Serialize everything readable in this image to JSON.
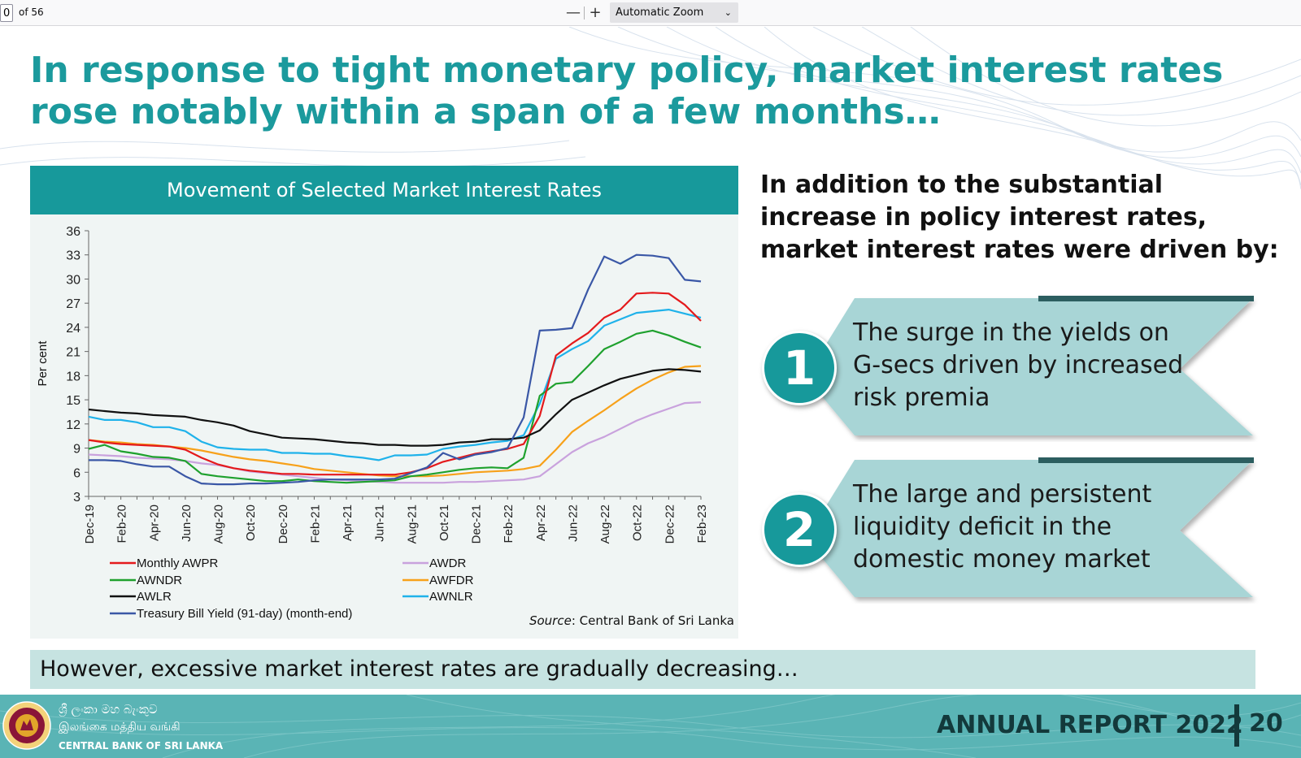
{
  "viewer": {
    "page_current": "0",
    "page_total_label": "of 56",
    "zoom_out": "—",
    "zoom_in": "+",
    "zoom_label": "Automatic Zoom"
  },
  "slide": {
    "title": "In response to tight monetary policy, market interest rates rose notably within a span of a few months…",
    "right_heading": "In addition to the substantial increase in policy interest rates, market interest rates were driven by:",
    "points": [
      {
        "number": "1",
        "text": "The surge in the yields on G-secs driven by increased risk premia"
      },
      {
        "number": "2",
        "text": "The large and persistent liquidity deficit in the domestic money market"
      }
    ],
    "bottom_note": "However, excessive market interest rates are gradually decreasing…",
    "footer": {
      "bank_sinhala": "ශ්‍රී ලංකා මහ බැංකුව",
      "bank_tamil": "இலங்கை மத்திய வங்கி",
      "bank_english": "CENTRAL BANK OF SRI LANKA",
      "report_label": "ANNUAL REPORT 2022",
      "page_number": "20"
    }
  },
  "chart_data": {
    "type": "line",
    "title": "Movement of Selected Market Interest Rates",
    "xlabel": "",
    "ylabel": "Per cent",
    "ylim": [
      3,
      36
    ],
    "yticks": [
      3,
      6,
      9,
      12,
      15,
      18,
      21,
      24,
      27,
      30,
      33,
      36
    ],
    "x": [
      "Dec-19",
      "Jan-20",
      "Feb-20",
      "Mar-20",
      "Apr-20",
      "May-20",
      "Jun-20",
      "Jul-20",
      "Aug-20",
      "Sep-20",
      "Oct-20",
      "Nov-20",
      "Dec-20",
      "Jan-21",
      "Feb-21",
      "Mar-21",
      "Apr-21",
      "May-21",
      "Jun-21",
      "Jul-21",
      "Aug-21",
      "Sep-21",
      "Oct-21",
      "Nov-21",
      "Dec-21",
      "Jan-22",
      "Feb-22",
      "Mar-22",
      "Apr-22",
      "May-22",
      "Jun-22",
      "Jul-22",
      "Aug-22",
      "Sep-22",
      "Oct-22",
      "Nov-22",
      "Dec-22",
      "Jan-23",
      "Feb-23"
    ],
    "xtick_labels": [
      "Dec-19",
      "Feb-20",
      "Apr-20",
      "Jun-20",
      "Aug-20",
      "Oct-20",
      "Dec-20",
      "Feb-21",
      "Apr-21",
      "Jun-21",
      "Aug-21",
      "Oct-21",
      "Dec-21",
      "Feb-22",
      "Apr-22",
      "Jun-22",
      "Aug-22",
      "Oct-22",
      "Dec-22",
      "Feb-23"
    ],
    "grid": false,
    "source": "Central Bank of Sri Lanka",
    "source_label": "Source",
    "series": [
      {
        "name": "Monthly AWPR",
        "color": "#e41a1c",
        "values": [
          10.0,
          9.7,
          9.5,
          9.4,
          9.3,
          9.2,
          8.8,
          7.8,
          7.0,
          6.5,
          6.2,
          6.0,
          5.8,
          5.8,
          5.7,
          5.7,
          5.7,
          5.7,
          5.7,
          5.7,
          6.0,
          6.5,
          7.3,
          7.8,
          8.3,
          8.6,
          8.9,
          9.5,
          13.0,
          20.5,
          22.0,
          23.3,
          25.2,
          26.2,
          28.2,
          28.3,
          28.2,
          26.8,
          24.8
        ]
      },
      {
        "name": "AWNDR",
        "color": "#1fa12e",
        "values": [
          8.9,
          9.4,
          8.6,
          8.3,
          7.9,
          7.8,
          7.4,
          5.8,
          5.5,
          5.3,
          5.1,
          4.9,
          4.9,
          5.1,
          4.9,
          4.8,
          4.7,
          4.8,
          4.9,
          5.0,
          5.5,
          5.7,
          6.0,
          6.3,
          6.5,
          6.6,
          6.5,
          7.8,
          15.5,
          17.0,
          17.2,
          19.2,
          21.3,
          22.2,
          23.2,
          23.6,
          23.0,
          22.2,
          21.5
        ]
      },
      {
        "name": "AWLR",
        "color": "#111111",
        "values": [
          13.8,
          13.6,
          13.4,
          13.3,
          13.1,
          13.0,
          12.9,
          12.5,
          12.2,
          11.8,
          11.1,
          10.7,
          10.3,
          10.2,
          10.1,
          9.9,
          9.7,
          9.6,
          9.4,
          9.4,
          9.3,
          9.3,
          9.4,
          9.7,
          9.8,
          10.1,
          10.1,
          10.3,
          11.2,
          13.2,
          15.0,
          15.9,
          16.8,
          17.6,
          18.1,
          18.6,
          18.8,
          18.7,
          18.5
        ]
      },
      {
        "name": "Treasury Bill Yield (91-day) (month-end)",
        "color": "#3a57a6",
        "values": [
          7.5,
          7.5,
          7.4,
          7.0,
          6.7,
          6.7,
          5.5,
          4.6,
          4.5,
          4.5,
          4.6,
          4.6,
          4.7,
          4.8,
          5.0,
          5.1,
          5.1,
          5.1,
          5.1,
          5.2,
          5.9,
          6.6,
          8.4,
          7.6,
          8.2,
          8.5,
          9.0,
          12.8,
          23.6,
          23.7,
          23.9,
          28.7,
          32.8,
          31.9,
          33.0,
          32.9,
          32.6,
          29.9,
          29.7
        ]
      },
      {
        "name": "AWDR",
        "color": "#c9a2dd",
        "values": [
          8.2,
          8.1,
          8.0,
          7.8,
          7.7,
          7.6,
          7.4,
          7.1,
          6.9,
          6.5,
          6.1,
          5.9,
          5.7,
          5.5,
          5.3,
          5.1,
          5.0,
          4.9,
          4.8,
          4.7,
          4.7,
          4.7,
          4.7,
          4.8,
          4.8,
          4.9,
          5.0,
          5.1,
          5.5,
          7.0,
          8.5,
          9.6,
          10.4,
          11.4,
          12.4,
          13.2,
          13.9,
          14.6,
          14.7
        ]
      },
      {
        "name": "AWFDR",
        "color": "#f7a11a",
        "values": [
          10.0,
          9.8,
          9.7,
          9.5,
          9.4,
          9.2,
          9.0,
          8.7,
          8.3,
          7.9,
          7.6,
          7.4,
          7.1,
          6.8,
          6.4,
          6.2,
          6.0,
          5.8,
          5.6,
          5.5,
          5.5,
          5.5,
          5.6,
          5.8,
          6.0,
          6.1,
          6.2,
          6.4,
          6.8,
          8.8,
          11.0,
          12.4,
          13.7,
          15.1,
          16.4,
          17.5,
          18.4,
          19.1,
          19.2
        ]
      },
      {
        "name": "AWNLR",
        "color": "#1fb2ea",
        "values": [
          12.9,
          12.5,
          12.5,
          12.2,
          11.6,
          11.6,
          11.1,
          9.8,
          9.1,
          8.9,
          8.8,
          8.8,
          8.4,
          8.4,
          8.3,
          8.3,
          8.0,
          7.8,
          7.5,
          8.1,
          8.1,
          8.2,
          8.9,
          9.2,
          9.4,
          9.7,
          9.9,
          10.6,
          14.5,
          20.1,
          21.3,
          22.3,
          24.2,
          25.0,
          25.8,
          26.0,
          26.2,
          25.7,
          25.2
        ]
      }
    ]
  }
}
